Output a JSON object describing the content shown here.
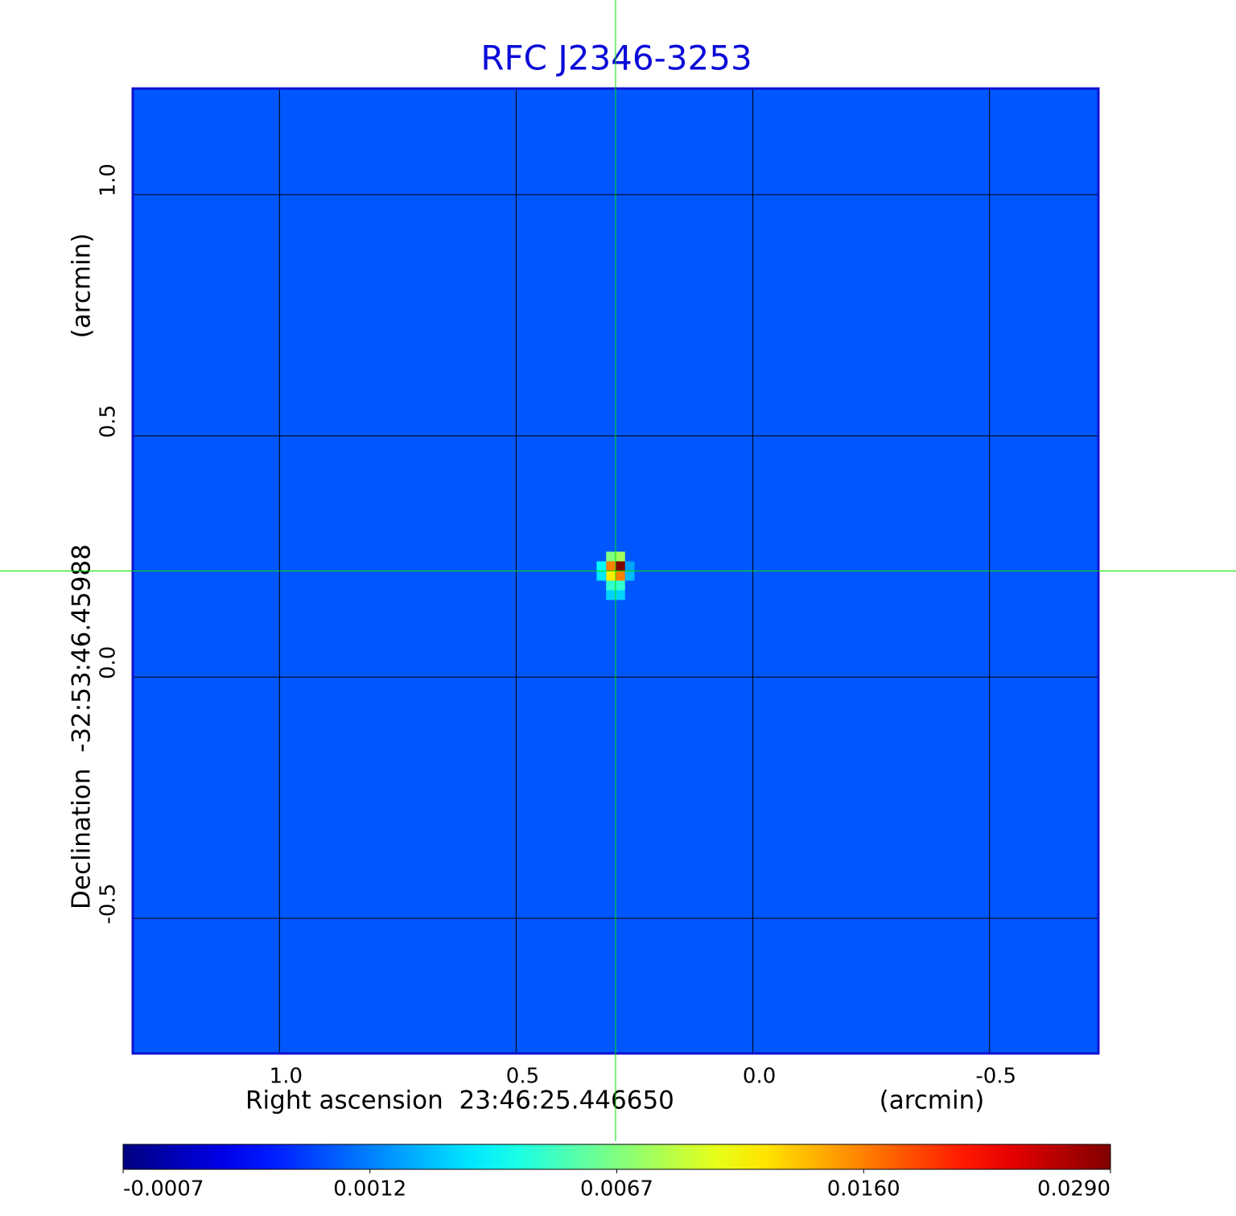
{
  "chart_data": {
    "type": "image",
    "title": "RFC J2346-3253",
    "x_label": "Right ascension  23:46:25.446650",
    "x_unit": "(arcmin)",
    "y_label": "Declination  -32:53:46.45988",
    "y_unit": "(arcmin)",
    "xlim": [
      1.31,
      -0.73
    ],
    "ylim": [
      -0.78,
      1.22
    ],
    "xticks": [
      {
        "value": 1,
        "label": "1.0"
      },
      0.5,
      {
        "value": 0,
        "label": "0.0"
      },
      -0.5
    ],
    "yticks": [
      -0.5,
      {
        "value": 0,
        "label": "0.0"
      },
      0.5,
      {
        "value": 1,
        "label": "1.0"
      }
    ],
    "grid": true,
    "background_value": 0.0009,
    "source": {
      "x": [
        0.28,
        0.3,
        0.28,
        0.3,
        0.28,
        0.3,
        0.32,
        0.32,
        0.28,
        0.3,
        0.3,
        0.28,
        0.26,
        0.26
      ],
      "y": [
        0.23,
        0.23,
        0.21,
        0.21,
        0.25,
        0.25,
        0.23,
        0.21,
        0.19,
        0.19,
        0.17,
        0.17,
        0.21,
        0.23
      ],
      "values": [
        0.029,
        0.016,
        0.016,
        0.012,
        0.008,
        0.0067,
        0.004,
        0.0035,
        0.005,
        0.005,
        0.003,
        0.003,
        0.0025,
        0.002
      ]
    },
    "crosshair": {
      "x": 0.29,
      "y": 0.22,
      "color": "#00e000"
    },
    "colorbar": {
      "colormap": "jet",
      "ticks": [
        -0.0007,
        0.0012,
        0.0067,
        {
          "value": 0.016,
          "label": "0.0160"
        },
        {
          "value": 0.029,
          "label": "0.0290"
        }
      ]
    }
  }
}
